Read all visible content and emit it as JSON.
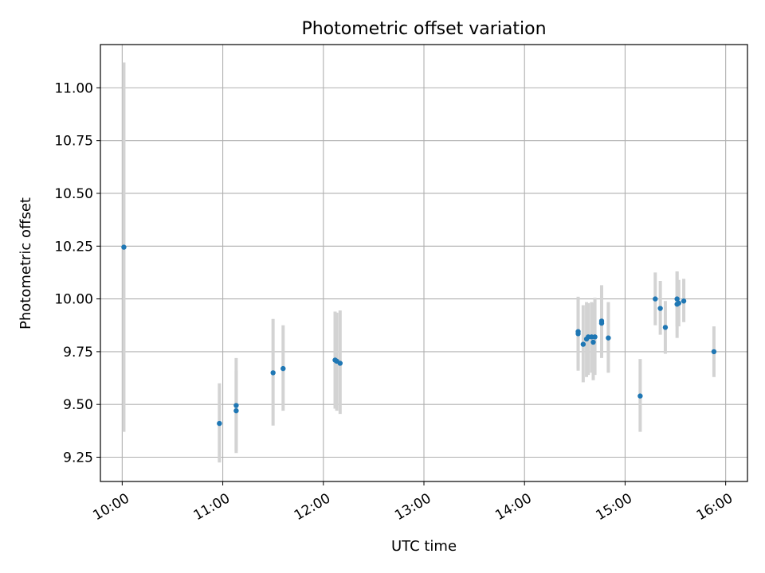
{
  "chart_data": {
    "type": "scatter",
    "title": "Photometric offset variation",
    "xlabel": "UTC time",
    "ylabel": "Photometric offset",
    "grid": true,
    "xlim": [
      "09:47",
      "16:13"
    ],
    "ylim": [
      9.135,
      11.205
    ],
    "x_ticks": [
      "10:00",
      "11:00",
      "12:00",
      "13:00",
      "14:00",
      "15:00",
      "16:00"
    ],
    "y_ticks": [
      "9.25",
      "9.50",
      "9.75",
      "10.00",
      "10.25",
      "10.50",
      "10.75",
      "11.00"
    ],
    "series": [
      {
        "name": "offset",
        "color": "#1f77b4",
        "errorbar_color": "#d3d3d3",
        "points": [
          {
            "t": "10:01",
            "y": 10.245,
            "lo": 9.37,
            "hi": 11.12
          },
          {
            "t": "10:58",
            "y": 9.41,
            "lo": 9.225,
            "hi": 9.6
          },
          {
            "t": "11:08",
            "y": 9.495,
            "lo": 9.27,
            "hi": 9.72
          },
          {
            "t": "11:08",
            "y": 9.47,
            "lo": 9.28,
            "hi": 9.66
          },
          {
            "t": "11:30",
            "y": 9.65,
            "lo": 9.4,
            "hi": 9.905
          },
          {
            "t": "11:36",
            "y": 9.67,
            "lo": 9.47,
            "hi": 9.875
          },
          {
            "t": "12:07",
            "y": 9.71,
            "lo": 9.48,
            "hi": 9.94
          },
          {
            "t": "12:08",
            "y": 9.705,
            "lo": 9.47,
            "hi": 9.935
          },
          {
            "t": "12:10",
            "y": 9.695,
            "lo": 9.455,
            "hi": 9.945
          },
          {
            "t": "14:32",
            "y": 9.845,
            "lo": 9.66,
            "hi": 10.01
          },
          {
            "t": "14:32",
            "y": 9.835,
            "lo": 9.67,
            "hi": 10.0
          },
          {
            "t": "14:35",
            "y": 9.785,
            "lo": 9.605,
            "hi": 9.97
          },
          {
            "t": "14:37",
            "y": 9.81,
            "lo": 9.63,
            "hi": 9.985
          },
          {
            "t": "14:38",
            "y": 9.82,
            "lo": 9.64,
            "hi": 9.98
          },
          {
            "t": "14:40",
            "y": 9.82,
            "lo": 9.65,
            "hi": 9.985
          },
          {
            "t": "14:41",
            "y": 9.795,
            "lo": 9.615,
            "hi": 9.98
          },
          {
            "t": "14:42",
            "y": 9.82,
            "lo": 9.64,
            "hi": 10.005
          },
          {
            "t": "14:46",
            "y": 9.895,
            "lo": 9.73,
            "hi": 10.065
          },
          {
            "t": "14:46",
            "y": 9.885,
            "lo": 9.72,
            "hi": 10.05
          },
          {
            "t": "14:50",
            "y": 9.815,
            "lo": 9.65,
            "hi": 9.985
          },
          {
            "t": "15:09",
            "y": 9.54,
            "lo": 9.37,
            "hi": 9.715
          },
          {
            "t": "15:18",
            "y": 10.0,
            "lo": 9.875,
            "hi": 10.125
          },
          {
            "t": "15:21",
            "y": 9.955,
            "lo": 9.83,
            "hi": 10.085
          },
          {
            "t": "15:24",
            "y": 9.865,
            "lo": 9.74,
            "hi": 9.99
          },
          {
            "t": "15:31",
            "y": 9.975,
            "lo": 9.815,
            "hi": 10.13
          },
          {
            "t": "15:31",
            "y": 10.0,
            "lo": 9.87,
            "hi": 10.13
          },
          {
            "t": "15:32",
            "y": 9.98,
            "lo": 9.87,
            "hi": 10.09
          },
          {
            "t": "15:35",
            "y": 9.99,
            "lo": 9.89,
            "hi": 10.095
          },
          {
            "t": "15:53",
            "y": 9.75,
            "lo": 9.63,
            "hi": 9.87
          }
        ]
      }
    ]
  }
}
